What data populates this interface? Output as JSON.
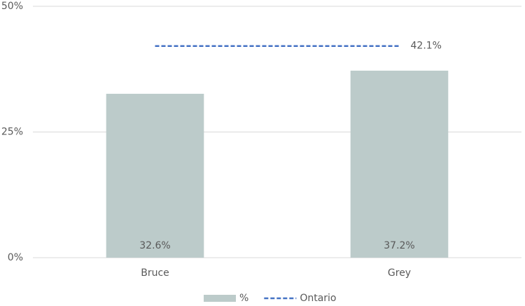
{
  "chart_data": {
    "type": "bar",
    "categories": [
      "Bruce",
      "Grey"
    ],
    "series": [
      {
        "name": "%",
        "type": "bar",
        "color": "#bccbca",
        "values": [
          32.6,
          37.2
        ],
        "value_labels": [
          "32.6%",
          "37.2%"
        ]
      },
      {
        "name": "Ontario",
        "type": "line",
        "color": "#4472c4",
        "dashed": true,
        "values": [
          42.1,
          42.1
        ],
        "value_labels": [
          null,
          "42.1%"
        ]
      }
    ],
    "ylim": [
      0,
      50
    ],
    "yticks": [
      {
        "value": 0,
        "label": "0%"
      },
      {
        "value": 25,
        "label": "25%"
      },
      {
        "value": 50,
        "label": "50%"
      }
    ],
    "grid": true,
    "legend": "bottom"
  }
}
